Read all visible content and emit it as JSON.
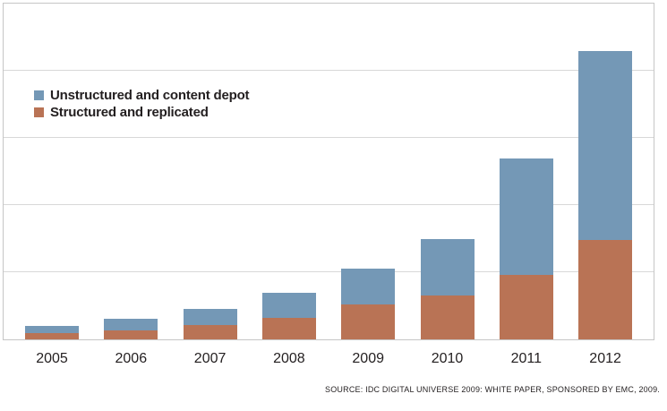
{
  "chart_data": {
    "type": "bar",
    "stacked": true,
    "categories": [
      "2005",
      "2006",
      "2007",
      "2008",
      "2009",
      "2010",
      "2011",
      "2012"
    ],
    "series": [
      {
        "name": "Structured and replicated",
        "color": "#b97355",
        "values": [
          0.09,
          0.13,
          0.21,
          0.32,
          0.52,
          0.65,
          0.96,
          1.48
        ]
      },
      {
        "name": "Unstructured and content depot",
        "color": "#7498b6",
        "values": [
          0.11,
          0.18,
          0.24,
          0.37,
          0.54,
          0.84,
          1.73,
          2.82
        ]
      }
    ],
    "title": "",
    "xlabel": "",
    "ylabel": "",
    "ylim": [
      0,
      5
    ],
    "y_gridline_count": 4,
    "y_tick_labels_visible": false,
    "grid": true,
    "legend_position": "upper-left-inside",
    "note": "No y-axis labels shown; values are in relative units where one gridline interval = 1"
  },
  "legend": {
    "items": [
      {
        "label": "Unstructured and content depot",
        "color": "#7498b6"
      },
      {
        "label": "Structured and replicated",
        "color": "#b97355"
      }
    ]
  },
  "source_note": "SOURCE: IDC DIGITAL UNIVERSE 2009: WHITE PAPER, SPONSORED BY EMC, 2009.",
  "colors": {
    "unstructured": "#7498b6",
    "structured": "#b97355",
    "gridline": "#d8d8d8",
    "frame_border": "#c6c6c6",
    "text": "#231f20",
    "background": "#ffffff"
  }
}
